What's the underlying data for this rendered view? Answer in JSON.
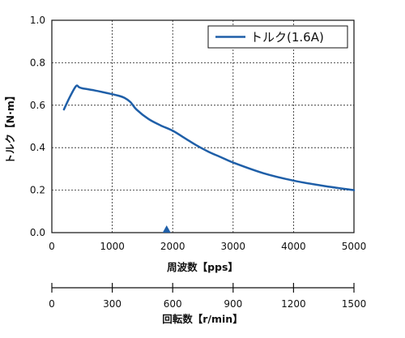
{
  "chart_data": {
    "type": "line",
    "xlabel": "周波数【pps】",
    "ylabel": "トルク【N·m】",
    "xlim": [
      0,
      5000
    ],
    "ylim": [
      0,
      1.0
    ],
    "x_ticks": [
      0,
      1000,
      2000,
      3000,
      4000,
      5000
    ],
    "y_ticks": [
      "0.0",
      "0.2",
      "0.4",
      "0.6",
      "0.8",
      "1.0"
    ],
    "grid": true,
    "legend_position": "top-right",
    "series": [
      {
        "name": "トルク(1.6A)",
        "color": "#1f5fa8",
        "x": [
          200,
          300,
          400,
          450,
          500,
          700,
          900,
          1100,
          1200,
          1300,
          1400,
          1600,
          1800,
          2000,
          2200,
          2400,
          2600,
          2800,
          3000,
          3500,
          4000,
          4500,
          5000
        ],
        "y": [
          0.58,
          0.64,
          0.69,
          0.685,
          0.68,
          0.67,
          0.658,
          0.645,
          0.635,
          0.615,
          0.58,
          0.535,
          0.505,
          0.48,
          0.445,
          0.41,
          0.38,
          0.355,
          0.33,
          0.28,
          0.245,
          0.22,
          0.2
        ]
      }
    ],
    "marker": {
      "x": 1900,
      "color": "#1f5fa8"
    },
    "secondary_axis": {
      "label": "回転数【r/min】",
      "ticks": [
        0,
        300,
        600,
        900,
        1200,
        1500
      ],
      "range": [
        0,
        1500
      ]
    }
  }
}
